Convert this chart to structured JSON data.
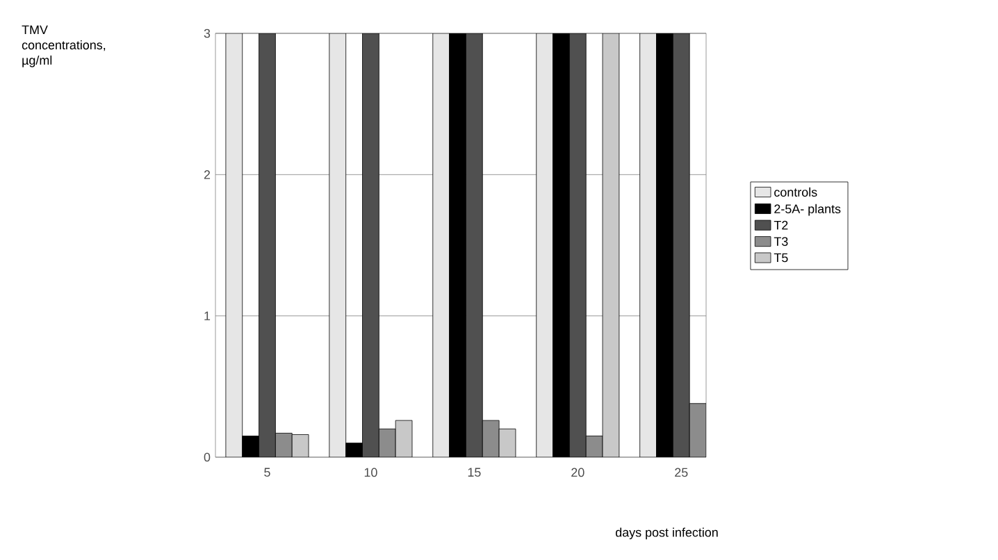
{
  "chart_data": {
    "type": "bar",
    "xlabel": "days post infection",
    "annotations": [
      "TMV concentrations, µg/ml"
    ],
    "categories": [
      "5",
      "10",
      "15",
      "20",
      "25"
    ],
    "series": [
      {
        "name": "controls",
        "color": "#e6e6e6",
        "values": [
          3,
          3,
          3,
          3,
          3
        ]
      },
      {
        "name": "2-5A- plants",
        "color": "#000000",
        "values": [
          0.15,
          0.1,
          3,
          3,
          3
        ]
      },
      {
        "name": "T2",
        "color": "#505050",
        "values": [
          3,
          3,
          3,
          3,
          3
        ]
      },
      {
        "name": "T3",
        "color": "#8c8c8c",
        "values": [
          0.17,
          0.2,
          0.26,
          0.15,
          0.38
        ]
      },
      {
        "name": "T5",
        "color": "#c8c8c8",
        "values": [
          0.16,
          0.26,
          0.2,
          3,
          null
        ]
      }
    ],
    "ylim": [
      0,
      3
    ],
    "yticks": [
      0,
      1,
      2,
      3
    ],
    "grid": "y",
    "legend": "right"
  }
}
